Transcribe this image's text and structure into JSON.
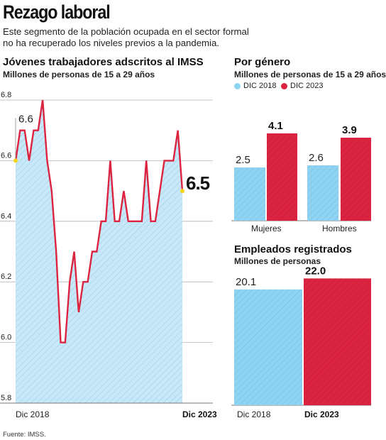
{
  "header": {
    "title": "Rezago laboral",
    "subtitle_line1": "Este segmento de la población ocupada en el sector formal",
    "subtitle_line2": "no ha recuperado los niveles previos a la pandemia."
  },
  "left_panel": {
    "title": "Jóvenes trabajadores adscritos al IMSS",
    "subtitle": "Millones de personas de 15 a 29 años"
  },
  "right_top": {
    "title": "Por género",
    "subtitle": "Millones de personas de 15 a 29 años",
    "legend": [
      "DIC 2018",
      "DIC 2023"
    ]
  },
  "right_bottom": {
    "title": "Empleados registrados",
    "subtitle": "Millones de personas"
  },
  "source": "Fuente: IMSS.",
  "colors": {
    "blue": "#8fd3f2",
    "red": "#dc2440",
    "line": "#dc2440",
    "area": "#c7e8f8",
    "marker": "#f5d21b",
    "grid": "#b5b5b5"
  },
  "chart_data": [
    {
      "type": "line",
      "title": "Jóvenes trabajadores adscritos al IMSS",
      "subtitle": "Millones de personas de 15 a 29 años",
      "ylim": [
        5.8,
        6.8
      ],
      "yticks": [
        "5.8",
        "6.0",
        "6.2",
        "6.4",
        "6.6",
        "6.8"
      ],
      "x_labels": [
        "Dic 2018",
        "Dic 2023"
      ],
      "grid": true,
      "area_fill": true,
      "start_label": "6.6",
      "end_label": "6.5",
      "values": [
        6.6,
        6.7,
        6.7,
        6.6,
        6.7,
        6.7,
        6.8,
        6.6,
        6.5,
        6.3,
        6.0,
        6.0,
        6.2,
        6.3,
        6.1,
        6.2,
        6.2,
        6.3,
        6.3,
        6.4,
        6.4,
        6.6,
        6.4,
        6.4,
        6.5,
        6.4,
        6.4,
        6.4,
        6.4,
        6.6,
        6.4,
        6.4,
        6.5,
        6.6,
        6.6,
        6.6,
        6.7,
        6.5
      ]
    },
    {
      "type": "bar",
      "title": "Por género",
      "subtitle": "Millones de personas de 15 a 29 años",
      "categories": [
        "Mujeres",
        "Hombres"
      ],
      "series": [
        {
          "name": "DIC 2018",
          "values": [
            2.5,
            2.6
          ]
        },
        {
          "name": "DIC 2023",
          "values": [
            4.1,
            3.9
          ]
        }
      ],
      "value_labels": [
        [
          "2.5",
          "2.6"
        ],
        [
          "4.1",
          "3.9"
        ]
      ]
    },
    {
      "type": "bar",
      "title": "Empleados registrados",
      "subtitle": "Millones de personas",
      "categories": [
        "Dic 2018",
        "Dic 2023"
      ],
      "values": [
        20.1,
        22.0
      ],
      "value_labels": [
        "20.1",
        "22.0"
      ]
    }
  ]
}
